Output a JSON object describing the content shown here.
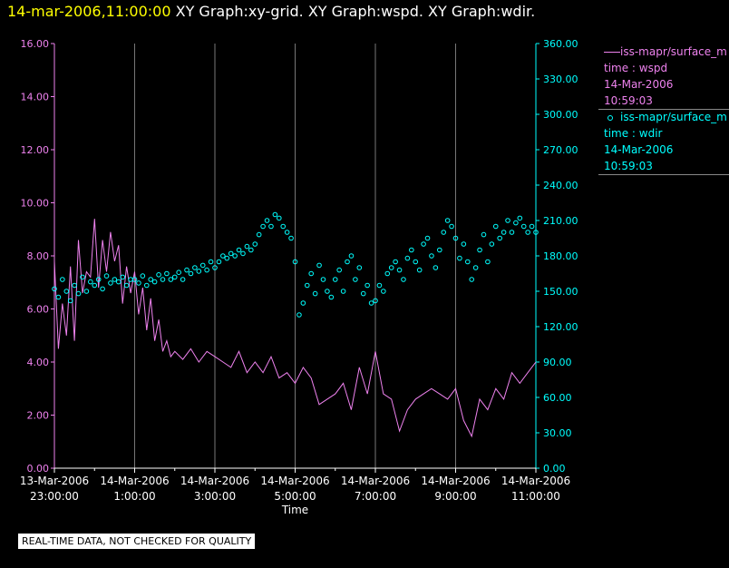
{
  "header": {
    "datetime": "14-mar-2006,11:00:00",
    "graphs": "XY Graph:xy-grid.  XY Graph:wspd.  XY Graph:wdir."
  },
  "disclaimer": "REAL-TIME DATA, NOT CHECKED FOR QUALITY",
  "legend": [
    {
      "marker": "line",
      "name": "iss-mapr/surface_m",
      "line2": "time : wspd",
      "line3": "14-Mar-2006",
      "line4": "10:59:03",
      "color": "#ee82ee"
    },
    {
      "marker": "circle",
      "name": "iss-mapr/surface_m",
      "line2": "time : wdir",
      "line3": "14-Mar-2006",
      "line4": "10:59:03",
      "color": "#00ffff"
    }
  ],
  "chart_data": {
    "type": "scatter",
    "xlabel": "Time",
    "x_ticks": [
      {
        "hour": -1,
        "line1": "13-Mar-2006",
        "line2": "23:00:00"
      },
      {
        "hour": 1,
        "line1": "14-Mar-2006",
        "line2": "1:00:00"
      },
      {
        "hour": 3,
        "line1": "14-Mar-2006",
        "line2": "3:00:00"
      },
      {
        "hour": 5,
        "line1": "14-Mar-2006",
        "line2": "5:00:00"
      },
      {
        "hour": 7,
        "line1": "14-Mar-2006",
        "line2": "7:00:00"
      },
      {
        "hour": 9,
        "line1": "14-Mar-2006",
        "line2": "9:00:00"
      },
      {
        "hour": 11,
        "line1": "14-Mar-2006",
        "line2": "11:00:00"
      }
    ],
    "x_range": [
      -1,
      11
    ],
    "y_left": {
      "range": [
        0,
        16
      ],
      "ticks": [
        "0.00",
        "2.00",
        "4.00",
        "6.00",
        "8.00",
        "10.00",
        "12.00",
        "14.00",
        "16.00"
      ],
      "color": "#ee82ee"
    },
    "y_right": {
      "range": [
        0,
        360
      ],
      "ticks": [
        "0.00",
        "30.00",
        "60.00",
        "90.00",
        "120.00",
        "150.00",
        "180.00",
        "210.00",
        "240.00",
        "270.00",
        "300.00",
        "330.00",
        "360.00"
      ],
      "color": "#00ffff"
    },
    "grid": {
      "vertical": true,
      "horizontal": false
    },
    "series": [
      {
        "type": "line",
        "axis": "left",
        "color": "#ee82ee",
        "x": [
          -1.0,
          -0.9,
          -0.8,
          -0.7,
          -0.6,
          -0.5,
          -0.4,
          -0.3,
          -0.2,
          -0.1,
          0.0,
          0.1,
          0.2,
          0.3,
          0.4,
          0.5,
          0.6,
          0.7,
          0.8,
          0.9,
          1.0,
          1.1,
          1.2,
          1.3,
          1.4,
          1.5,
          1.6,
          1.7,
          1.8,
          1.9,
          2.0,
          2.2,
          2.4,
          2.6,
          2.8,
          3.0,
          3.2,
          3.4,
          3.6,
          3.8,
          4.0,
          4.2,
          4.4,
          4.6,
          4.8,
          5.0,
          5.2,
          5.4,
          5.6,
          5.8,
          6.0,
          6.2,
          6.4,
          6.6,
          6.8,
          7.0,
          7.2,
          7.4,
          7.6,
          7.8,
          8.0,
          8.2,
          8.4,
          8.6,
          8.8,
          9.0,
          9.2,
          9.4,
          9.6,
          9.8,
          10.0,
          10.2,
          10.4,
          10.6,
          10.8,
          11.0
        ],
        "y": [
          7.8,
          4.5,
          6.2,
          5.0,
          7.6,
          4.8,
          8.6,
          6.6,
          7.4,
          7.2,
          9.4,
          6.8,
          8.6,
          7.4,
          8.9,
          7.8,
          8.4,
          6.2,
          7.6,
          6.6,
          7.4,
          5.8,
          6.8,
          5.2,
          6.4,
          4.8,
          5.6,
          4.4,
          4.8,
          4.2,
          4.4,
          4.1,
          4.5,
          4.0,
          4.4,
          4.2,
          4.0,
          3.8,
          4.4,
          3.6,
          4.0,
          3.6,
          4.2,
          3.4,
          3.6,
          3.2,
          3.8,
          3.4,
          2.4,
          2.6,
          2.8,
          3.2,
          2.2,
          3.8,
          2.8,
          4.4,
          2.8,
          2.6,
          1.4,
          2.2,
          2.6,
          2.8,
          3.0,
          2.8,
          2.6,
          3.0,
          1.8,
          1.2,
          2.6,
          2.2,
          3.0,
          2.6,
          3.6,
          3.2,
          3.6,
          4.0
        ]
      },
      {
        "type": "scatter",
        "axis": "right",
        "color": "#00ffff",
        "x": [
          -1.0,
          -0.9,
          -0.8,
          -0.7,
          -0.6,
          -0.5,
          -0.4,
          -0.3,
          -0.2,
          -0.1,
          0.0,
          0.1,
          0.2,
          0.3,
          0.4,
          0.5,
          0.6,
          0.7,
          0.8,
          0.9,
          1.0,
          1.1,
          1.2,
          1.3,
          1.4,
          1.5,
          1.6,
          1.7,
          1.8,
          1.9,
          2.0,
          2.1,
          2.2,
          2.3,
          2.4,
          2.5,
          2.6,
          2.7,
          2.8,
          2.9,
          3.0,
          3.1,
          3.2,
          3.3,
          3.4,
          3.5,
          3.6,
          3.7,
          3.8,
          3.9,
          4.0,
          4.1,
          4.2,
          4.3,
          4.4,
          4.5,
          4.6,
          4.7,
          4.8,
          4.9,
          5.0,
          5.1,
          5.2,
          5.3,
          5.4,
          5.5,
          5.6,
          5.7,
          5.8,
          5.9,
          6.0,
          6.1,
          6.2,
          6.3,
          6.4,
          6.5,
          6.6,
          6.7,
          6.8,
          6.9,
          7.0,
          7.1,
          7.2,
          7.3,
          7.4,
          7.5,
          7.6,
          7.7,
          7.8,
          7.9,
          8.0,
          8.1,
          8.2,
          8.3,
          8.4,
          8.5,
          8.6,
          8.7,
          8.8,
          8.9,
          9.0,
          9.1,
          9.2,
          9.3,
          9.4,
          9.5,
          9.6,
          9.7,
          9.8,
          9.9,
          10.0,
          10.1,
          10.2,
          10.3,
          10.4,
          10.5,
          10.6,
          10.7,
          10.8,
          10.9,
          11.0
        ],
        "y": [
          152,
          145,
          160,
          150,
          142,
          155,
          148,
          162,
          150,
          158,
          155,
          160,
          152,
          163,
          157,
          160,
          158,
          162,
          155,
          160,
          160,
          157,
          163,
          155,
          160,
          158,
          164,
          160,
          165,
          160,
          162,
          166,
          160,
          168,
          165,
          170,
          167,
          172,
          168,
          175,
          170,
          175,
          180,
          178,
          182,
          180,
          185,
          182,
          188,
          185,
          190,
          198,
          205,
          210,
          205,
          215,
          212,
          205,
          200,
          195,
          175,
          130,
          140,
          155,
          165,
          148,
          172,
          160,
          150,
          145,
          160,
          168,
          150,
          175,
          180,
          160,
          170,
          148,
          155,
          140,
          142,
          155,
          150,
          165,
          170,
          175,
          168,
          160,
          178,
          185,
          175,
          168,
          190,
          195,
          180,
          170,
          185,
          200,
          210,
          205,
          195,
          178,
          190,
          175,
          160,
          170,
          185,
          198,
          175,
          190,
          205,
          195,
          200,
          210,
          200,
          208,
          212,
          205,
          200,
          205,
          200
        ]
      }
    ]
  }
}
